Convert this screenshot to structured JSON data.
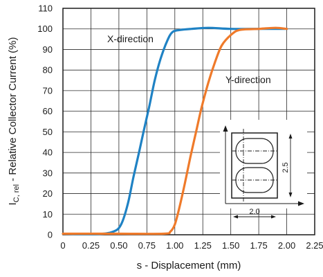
{
  "chart_data": {
    "type": "line",
    "xlabel": "s - Displacement (mm)",
    "ylabel_main": "I",
    "ylabel_sub": "C, rel",
    "ylabel_rest": " - Relative Collector Current (%)",
    "xlim": [
      0,
      2.25
    ],
    "ylim": [
      0,
      110
    ],
    "x_ticks": [
      "0",
      "0.25",
      "0.50",
      "0.75",
      "1.00",
      "1.25",
      "1.50",
      "1.75",
      "2.00",
      "2.25"
    ],
    "y_ticks": [
      "0",
      "10",
      "20",
      "30",
      "40",
      "50",
      "60",
      "70",
      "80",
      "90",
      "100",
      "110"
    ],
    "grid": true,
    "series": [
      {
        "name": "X-direction",
        "color": "#1f82c4",
        "points": [
          [
            0,
            0.5
          ],
          [
            0.3,
            0.3
          ],
          [
            0.45,
            1.5
          ],
          [
            0.52,
            5
          ],
          [
            0.58,
            15
          ],
          [
            0.63,
            28
          ],
          [
            0.68,
            40
          ],
          [
            0.72,
            50
          ],
          [
            0.77,
            62
          ],
          [
            0.82,
            75
          ],
          [
            0.87,
            85
          ],
          [
            0.93,
            94
          ],
          [
            0.98,
            98.5
          ],
          [
            1.05,
            99.5
          ],
          [
            1.15,
            100
          ],
          [
            1.3,
            100.5
          ],
          [
            1.5,
            100
          ],
          [
            1.75,
            100
          ],
          [
            2.0,
            100
          ]
        ]
      },
      {
        "name": "Y-direction",
        "color": "#ef7a2a",
        "points": [
          [
            0,
            0.5
          ],
          [
            0.5,
            0.5
          ],
          [
            0.9,
            0.5
          ],
          [
            0.96,
            1.5
          ],
          [
            1.0,
            5
          ],
          [
            1.04,
            13
          ],
          [
            1.09,
            25
          ],
          [
            1.14,
            38
          ],
          [
            1.19,
            50
          ],
          [
            1.24,
            62
          ],
          [
            1.3,
            74
          ],
          [
            1.36,
            84
          ],
          [
            1.42,
            92
          ],
          [
            1.5,
            97
          ],
          [
            1.58,
            99.5
          ],
          [
            1.75,
            100
          ],
          [
            1.9,
            100.5
          ],
          [
            2.0,
            100
          ]
        ]
      }
    ],
    "annotations": [
      "X-direction",
      "Y-direction"
    ],
    "inset": {
      "dim_width": "2.0",
      "dim_height": "2.5"
    }
  }
}
